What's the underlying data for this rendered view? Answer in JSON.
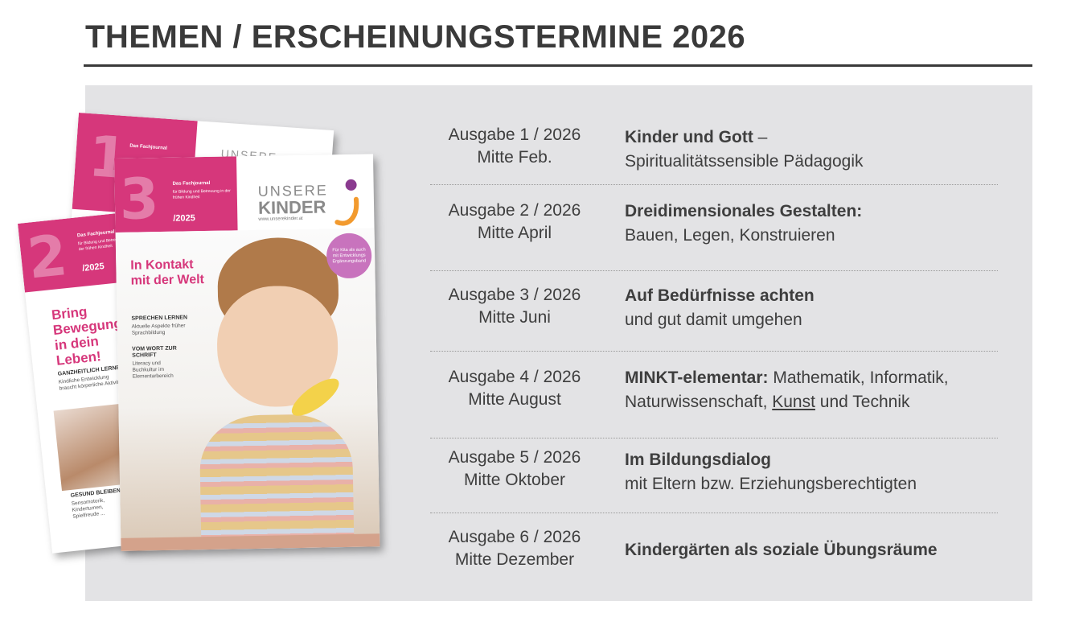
{
  "page": {
    "title": "THEMEN / ERSCHEINUNGSTERMINE 2026"
  },
  "issues": [
    {
      "ausgabe": "Ausgabe 1 / 2026",
      "termin": "Mitte Feb.",
      "topic_bold": "Kinder und Gott",
      "topic_rest": " –",
      "topic_line2": "Spiritualitätssensible Pädagogik"
    },
    {
      "ausgabe": "Ausgabe 2 / 2026",
      "termin": "Mitte April",
      "topic_bold": "Dreidimensionales Gestalten:",
      "topic_rest": "",
      "topic_line2": "Bauen, Legen, Konstruieren"
    },
    {
      "ausgabe": "Ausgabe 3 / 2026",
      "termin": "Mitte Juni",
      "topic_bold": "Auf Bedürfnisse achten",
      "topic_rest": "",
      "topic_line2": "und gut damit umgehen"
    },
    {
      "ausgabe": "Ausgabe 4 / 2026",
      "termin": "Mitte August",
      "topic_bold": "MINKT-elementar:",
      "topic_rest": " Mathematik, Informatik,",
      "topic_line2a": "Naturwissenschaft, ",
      "topic_line2_underlined": "Kunst",
      "topic_line2b": " und Technik"
    },
    {
      "ausgabe": "Ausgabe 5 / 2026",
      "termin": "Mitte Oktober",
      "topic_bold": "Im Bildungsdialog",
      "topic_rest": "",
      "topic_line2": "mit Eltern bzw. Erziehungsberechtigten"
    },
    {
      "ausgabe": "Ausgabe 6 / 2026",
      "termin": "Mitte Dezember",
      "topic_bold": "Kindergärten als soziale Übungsräume",
      "topic_rest": "",
      "topic_line2": ""
    }
  ],
  "covers": {
    "back": {
      "number": "1",
      "journal": "Das Fachjournal",
      "brand_fragment": "UNSERE"
    },
    "left": {
      "number": "2",
      "journal": "Das Fachjournal",
      "journal_sub": "für Bildung und Betreuung in der frühen Kindheit",
      "year": "/2025",
      "headline": "Bring Bewegung in dein Leben!",
      "section1_title": "GANZHEITLICH LERNEN",
      "section1_text": "Kindliche Entwicklung braucht körperliche Aktivität",
      "section2_title": "GESUND BLEIBEN",
      "section2_text": "Sensomotorik, Kinderturnen, Spielfreude ..."
    },
    "front": {
      "number": "3",
      "journal": "Das Fachjournal",
      "journal_sub": "für Bildung und Betreuung in der frühen Kindheit",
      "year": "/2025",
      "brand_line1": "UNSERE",
      "brand_line2": "KINDER",
      "brand_url": "www.unserekinder.at",
      "badge": "Für Kita als auch mit Entwicklungs Ergänzungsband",
      "headline": "In Kontakt mit der Welt",
      "section1_title": "SPRECHEN LERNEN",
      "section1_text": "Aktuelle Aspekte früher Sprachbildung",
      "section2_title": "VOM WORT ZUR SCHRIFT",
      "section2_text": "Literacy und Buchkultur im Elementarbereich"
    }
  },
  "colors": {
    "accent": "#d6377b",
    "panel": "#e3e3e5",
    "text": "#3c3c3c",
    "brand_orange": "#f29a2e",
    "brand_purple": "#8a3a8f"
  },
  "icons": {
    "brand_logo": "unsere-kinder-logo-icon"
  }
}
